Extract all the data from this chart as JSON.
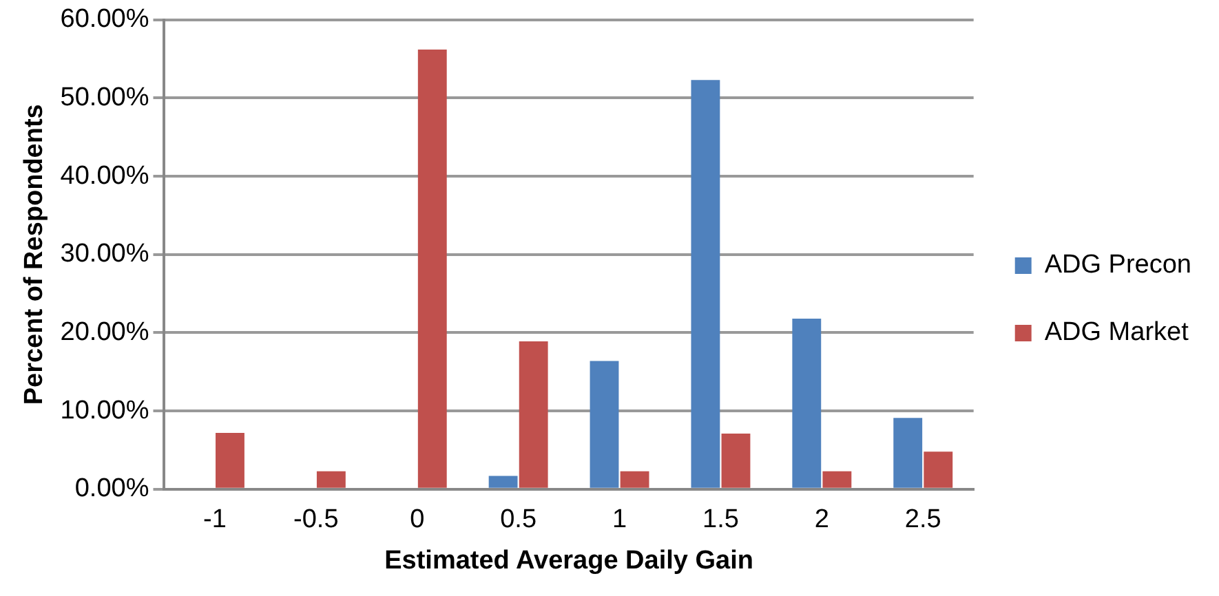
{
  "chart_data": {
    "type": "bar",
    "xlabel": "Estimated Average Daily Gain",
    "ylabel": "Percent of Respondents",
    "categories": [
      "-1",
      "-0.5",
      "0",
      "0.5",
      "1",
      "1.5",
      "2",
      "2.5"
    ],
    "series": [
      {
        "name": "ADG Precon",
        "color": "#4f81bd",
        "values": [
          0,
          0,
          0,
          1.7,
          16.4,
          52.3,
          21.8,
          9.1
        ]
      },
      {
        "name": "ADG Market",
        "color": "#c0504d",
        "values": [
          7.2,
          2.3,
          56.2,
          18.9,
          2.3,
          7.1,
          2.3,
          4.8
        ]
      }
    ],
    "ylim": [
      0,
      60
    ],
    "yticks": [
      {
        "value": 0,
        "label": "0.00%"
      },
      {
        "value": 10,
        "label": "10.00%"
      },
      {
        "value": 20,
        "label": "20.00%"
      },
      {
        "value": 30,
        "label": "30.00%"
      },
      {
        "value": 40,
        "label": "40.00%"
      },
      {
        "value": 50,
        "label": "50.00%"
      },
      {
        "value": 60,
        "label": "60.00%"
      }
    ],
    "grid": "y",
    "legend": "right"
  }
}
